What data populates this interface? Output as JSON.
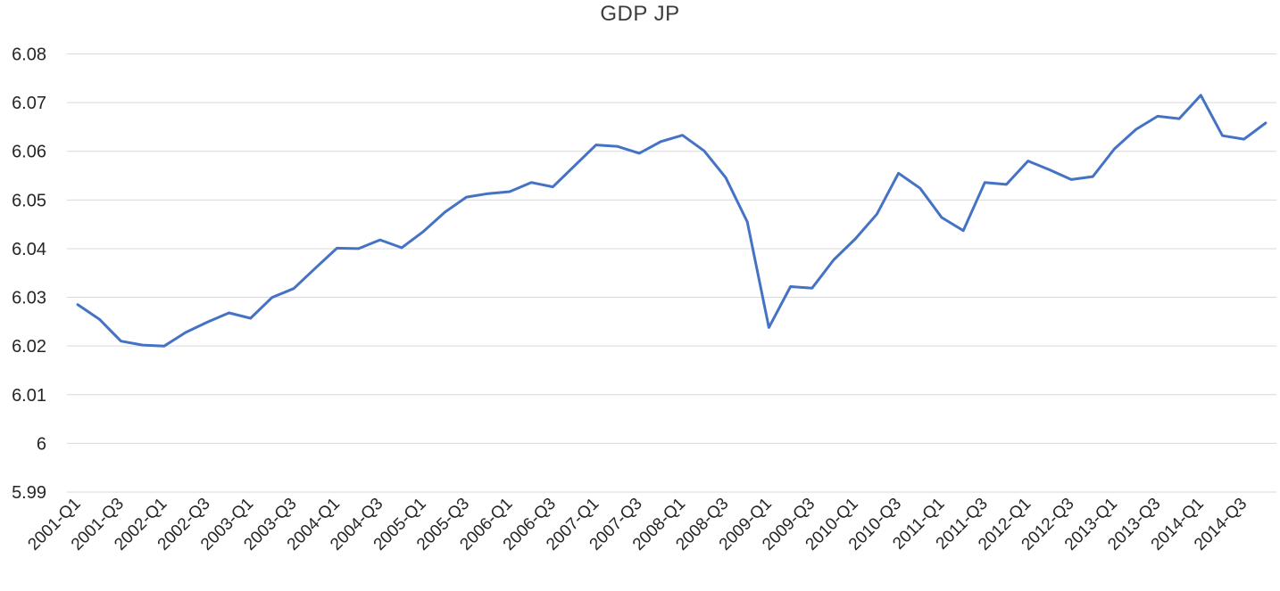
{
  "chart_data": {
    "type": "line",
    "title": "GDP JP",
    "xlabel": "",
    "ylabel": "",
    "ylim": [
      5.99,
      6.08
    ],
    "y_tick_labels": [
      "5.99",
      "6",
      "6.01",
      "6.02",
      "6.03",
      "6.04",
      "6.05",
      "6.06",
      "6.07",
      "6.08"
    ],
    "x_tick_every": 2,
    "grid": "horizontal-only",
    "legend": "none",
    "x_label_rotation_deg": 45,
    "categories": [
      "2001-Q1",
      "2001-Q2",
      "2001-Q3",
      "2001-Q4",
      "2002-Q1",
      "2002-Q2",
      "2002-Q3",
      "2002-Q4",
      "2003-Q1",
      "2003-Q2",
      "2003-Q3",
      "2003-Q4",
      "2004-Q1",
      "2004-Q2",
      "2004-Q3",
      "2004-Q4",
      "2005-Q1",
      "2005-Q2",
      "2005-Q3",
      "2005-Q4",
      "2006-Q1",
      "2006-Q2",
      "2006-Q3",
      "2006-Q4",
      "2007-Q1",
      "2007-Q2",
      "2007-Q3",
      "2007-Q4",
      "2008-Q1",
      "2008-Q2",
      "2008-Q3",
      "2008-Q4",
      "2009-Q1",
      "2009-Q2",
      "2009-Q3",
      "2009-Q4",
      "2010-Q1",
      "2010-Q2",
      "2010-Q3",
      "2010-Q4",
      "2011-Q1",
      "2011-Q2",
      "2011-Q3",
      "2011-Q4",
      "2012-Q1",
      "2012-Q2",
      "2012-Q3",
      "2012-Q4",
      "2013-Q1",
      "2013-Q2",
      "2013-Q3",
      "2013-Q4",
      "2014-Q1",
      "2014-Q2",
      "2014-Q3",
      "2014-Q4"
    ],
    "series": [
      {
        "name": "GDP JP",
        "color": "#4472C4",
        "values": [
          6.0285,
          6.0255,
          6.021,
          6.0202,
          6.02,
          6.0228,
          6.0249,
          6.0268,
          6.0257,
          6.03,
          6.0318,
          6.036,
          6.0401,
          6.04,
          6.0418,
          6.0402,
          6.0435,
          6.0475,
          6.0506,
          6.0513,
          6.0517,
          6.0536,
          6.0527,
          6.057,
          6.0613,
          6.061,
          6.0596,
          6.062,
          6.0633,
          6.0601,
          6.0546,
          6.0455,
          6.0238,
          6.0322,
          6.0319,
          6.0377,
          6.042,
          6.0471,
          6.0555,
          6.0524,
          6.0464,
          6.0437,
          6.0536,
          6.0532,
          6.058,
          6.0562,
          6.0542,
          6.0548,
          6.0605,
          6.0645,
          6.0672,
          6.0667,
          6.0715,
          6.0632,
          6.0625,
          6.0658
        ]
      }
    ]
  },
  "colors": {
    "line": "#4472C4",
    "gridline": "#d9d9d9",
    "text": "#262626",
    "background": "#ffffff"
  }
}
